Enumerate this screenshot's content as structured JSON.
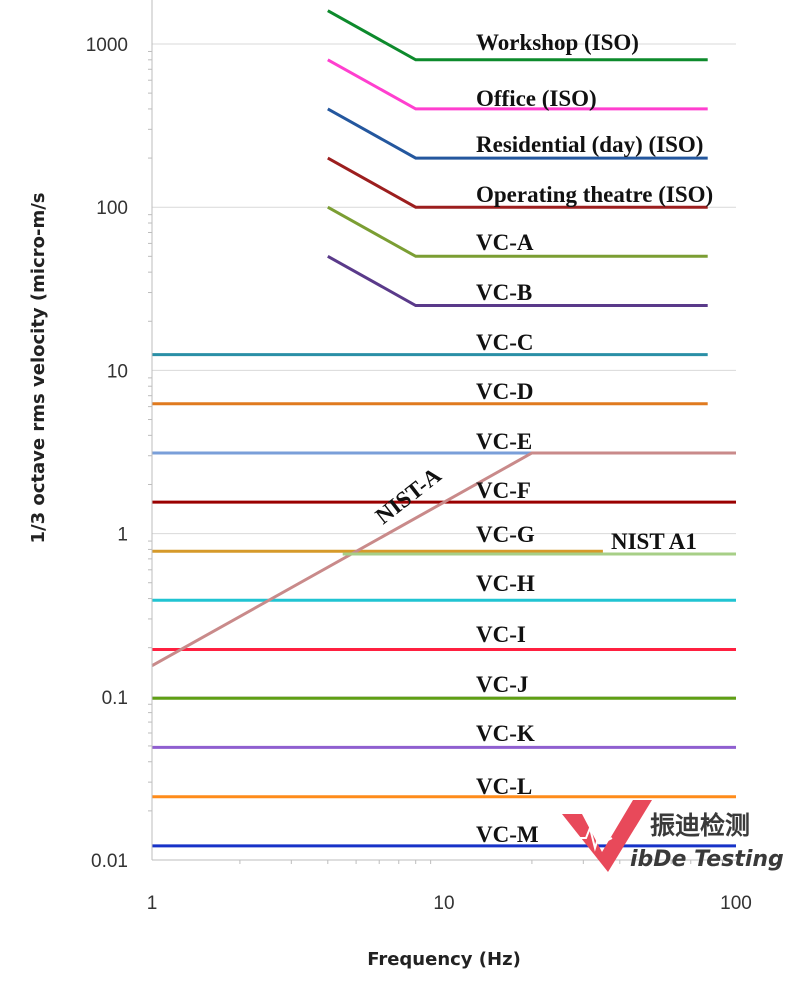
{
  "chart_data": {
    "type": "line",
    "title": "",
    "xlabel": "Frequency (Hz)",
    "ylabel": "1/3 octave rms velocity (micro-m/s",
    "xscale": "log",
    "yscale": "log",
    "xlim": [
      1,
      100
    ],
    "ylim": [
      0.01,
      1000
    ],
    "grid": "horizontal",
    "x_ticks": [
      {
        "value": 1,
        "label": "1"
      },
      {
        "value": 10,
        "label": "10"
      },
      {
        "value": 100,
        "label": "100"
      }
    ],
    "y_ticks": [
      {
        "value": 0.01,
        "label": "0.01"
      },
      {
        "value": 0.1,
        "label": "0.1"
      },
      {
        "value": 1,
        "label": "1"
      },
      {
        "value": 10,
        "label": "10"
      },
      {
        "value": 100,
        "label": "100"
      },
      {
        "value": 1000,
        "label": "1000"
      }
    ],
    "series": [
      {
        "name": "Workshop (ISO)",
        "color": "#0d8a2c",
        "points": [
          [
            4,
            1600
          ],
          [
            8,
            800
          ],
          [
            80,
            800
          ]
        ]
      },
      {
        "name": "Office (ISO)",
        "color": "#ff3fcf",
        "points": [
          [
            4,
            800
          ],
          [
            8,
            400
          ],
          [
            80,
            400
          ]
        ]
      },
      {
        "name": "Residential (day) (ISO)",
        "color": "#24579e",
        "points": [
          [
            4,
            400
          ],
          [
            8,
            200
          ],
          [
            80,
            200
          ]
        ]
      },
      {
        "name": "Operating theatre (ISO)",
        "color": "#9c1e1e",
        "points": [
          [
            4,
            200
          ],
          [
            8,
            100
          ],
          [
            80,
            100
          ]
        ]
      },
      {
        "name": "VC-A",
        "color": "#7b9e33",
        "points": [
          [
            4,
            100
          ],
          [
            8,
            50
          ],
          [
            80,
            50
          ]
        ]
      },
      {
        "name": "VC-B",
        "color": "#5a3a8a",
        "points": [
          [
            4,
            50
          ],
          [
            8,
            25
          ],
          [
            80,
            25
          ]
        ]
      },
      {
        "name": "VC-C",
        "color": "#2a8fa6",
        "points": [
          [
            1,
            12.5
          ],
          [
            80,
            12.5
          ]
        ]
      },
      {
        "name": "VC-D",
        "color": "#e07a1f",
        "points": [
          [
            1,
            6.25
          ],
          [
            80,
            6.25
          ]
        ]
      },
      {
        "name": "VC-E",
        "color": "#7a9fd9",
        "points": [
          [
            1,
            3.12
          ],
          [
            100,
            3.12
          ]
        ]
      },
      {
        "name": "VC-F",
        "color": "#9a0000",
        "points": [
          [
            1,
            1.56
          ],
          [
            100,
            1.56
          ]
        ]
      },
      {
        "name": "VC-G",
        "color": "#d69a2a",
        "points": [
          [
            1,
            0.78
          ],
          [
            35,
            0.78
          ]
        ]
      },
      {
        "name": "VC-H",
        "color": "#20c4d2",
        "points": [
          [
            1,
            0.39
          ],
          [
            100,
            0.39
          ]
        ]
      },
      {
        "name": "VC-I",
        "color": "#ff2040",
        "points": [
          [
            1,
            0.195
          ],
          [
            100,
            0.195
          ]
        ]
      },
      {
        "name": "VC-J",
        "color": "#5f9f14",
        "points": [
          [
            1,
            0.098
          ],
          [
            100,
            0.098
          ]
        ]
      },
      {
        "name": "VC-K",
        "color": "#8f5fd0",
        "points": [
          [
            1,
            0.049
          ],
          [
            100,
            0.049
          ]
        ]
      },
      {
        "name": "VC-L",
        "color": "#ff8c1a",
        "points": [
          [
            1,
            0.0244
          ],
          [
            100,
            0.0244
          ]
        ]
      },
      {
        "name": "VC-M",
        "color": "#1733c8",
        "points": [
          [
            1,
            0.0122
          ],
          [
            100,
            0.0122
          ]
        ]
      },
      {
        "name": "NIST-A",
        "color": "#c98a8a",
        "points": [
          [
            1,
            0.155
          ],
          [
            20,
            3.12
          ],
          [
            100,
            3.12
          ]
        ]
      },
      {
        "name": "NIST A1",
        "color": "#a7cf87",
        "points": [
          [
            4.5,
            0.75
          ],
          [
            100,
            0.75
          ]
        ]
      }
    ],
    "labels": {
      "workshop": "Workshop (ISO)",
      "office": "Office (ISO)",
      "residential": "Residential (day) (ISO)",
      "operating": "Operating theatre (ISO)",
      "vca": "VC-A",
      "vcb": "VC-B",
      "vcc": "VC-C",
      "vcd": "VC-D",
      "vce": "VC-E",
      "vcf": "VC-F",
      "vcg": "VC-G",
      "vch": "VC-H",
      "vci": "VC-I",
      "vcj": "VC-J",
      "vck": "VC-K",
      "vcl": "VC-L",
      "vcm": "VC-M",
      "nista": "NIST-A",
      "nista1": "NIST A1"
    }
  },
  "watermark": {
    "brand_cn": "振迪检测",
    "brand_en": "ibDe Testing",
    "logo_color": "#e8495a"
  }
}
